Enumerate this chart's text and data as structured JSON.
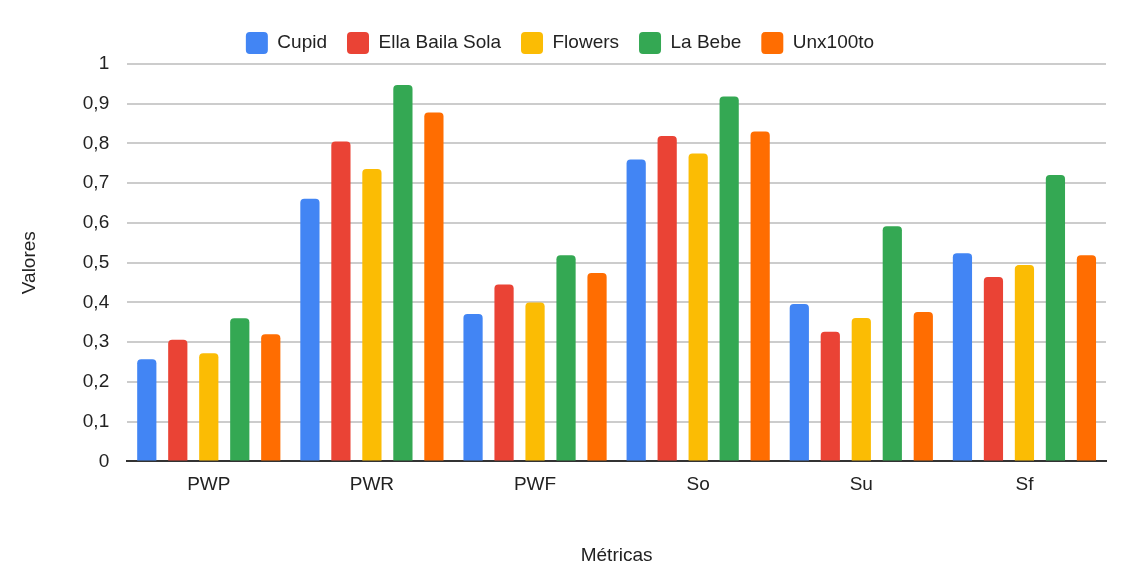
{
  "chart_data": {
    "type": "bar",
    "xlabel": "Métricas",
    "ylabel": "Valores",
    "categories": [
      "PWP",
      "PWR",
      "PWF",
      "So",
      "Su",
      "Sf"
    ],
    "series": [
      {
        "name": "Cupid",
        "color": "#4285f4",
        "values": [
          0.257,
          0.661,
          0.371,
          0.76,
          0.396,
          0.524
        ]
      },
      {
        "name": "Ella Baila Sola",
        "color": "#ea4335",
        "values": [
          0.306,
          0.805,
          0.445,
          0.819,
          0.326,
          0.464
        ]
      },
      {
        "name": "Flowers",
        "color": "#fbbc04",
        "values": [
          0.272,
          0.736,
          0.4,
          0.775,
          0.361,
          0.494
        ]
      },
      {
        "name": "La Bebe",
        "color": "#34a853",
        "values": [
          0.36,
          0.947,
          0.519,
          0.918,
          0.592,
          0.721
        ]
      },
      {
        "name": "Unx100to",
        "color": "#ff6d01",
        "values": [
          0.32,
          0.878,
          0.474,
          0.83,
          0.376,
          0.519
        ]
      }
    ],
    "ylim": [
      0,
      1
    ],
    "yticks": [
      0,
      {
        "value": 0.1,
        "label": "0,1"
      },
      {
        "value": 0.2,
        "label": "0,2"
      },
      {
        "value": 0.3,
        "label": "0,3"
      },
      {
        "value": 0.4,
        "label": "0,4"
      },
      {
        "value": 0.5,
        "label": "0,5"
      },
      {
        "value": 0.6,
        "label": "0,6"
      },
      {
        "value": 0.7,
        "label": "0,7"
      },
      {
        "value": 0.8,
        "label": "0,8"
      },
      {
        "value": 0.9,
        "label": "0,9"
      },
      1
    ],
    "grid": "y",
    "legend": "top"
  }
}
